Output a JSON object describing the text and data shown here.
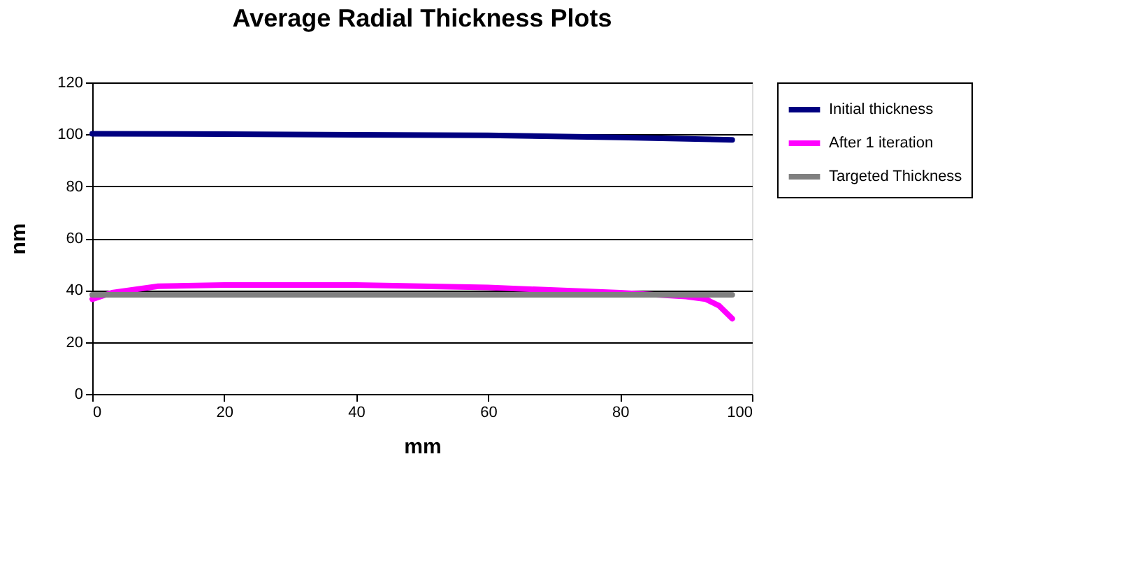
{
  "chart_data": {
    "type": "line",
    "title": "Average Radial Thickness Plots",
    "xlabel": "mm",
    "ylabel": "nm",
    "xlim": [
      0,
      100
    ],
    "xticks": [
      0,
      20,
      40,
      60,
      80,
      100
    ],
    "ylim": [
      0,
      120
    ],
    "yticks": [
      0,
      20,
      40,
      60,
      80,
      100,
      120
    ],
    "grid": "y",
    "legend": "right",
    "marker": "none",
    "line_style": "solid",
    "series": [
      {
        "name": "Initial thickness",
        "color": "#000080",
        "x": [
          0,
          20,
          40,
          60,
          80,
          97
        ],
        "values": [
          100.2,
          100.1,
          99.8,
          99.6,
          98.8,
          97.9
        ]
      },
      {
        "name": "After 1 iteration",
        "color": "#ff00ff",
        "x": [
          0,
          3,
          10,
          20,
          40,
          60,
          80,
          90,
          93,
          95,
          97
        ],
        "values": [
          36.5,
          39,
          41.5,
          42,
          42,
          41,
          39,
          37.5,
          36.5,
          34,
          29
        ]
      },
      {
        "name": "Targeted Thickness",
        "color": "#808080",
        "x": [
          0,
          97
        ],
        "values": [
          38.2,
          38.2
        ]
      }
    ]
  }
}
